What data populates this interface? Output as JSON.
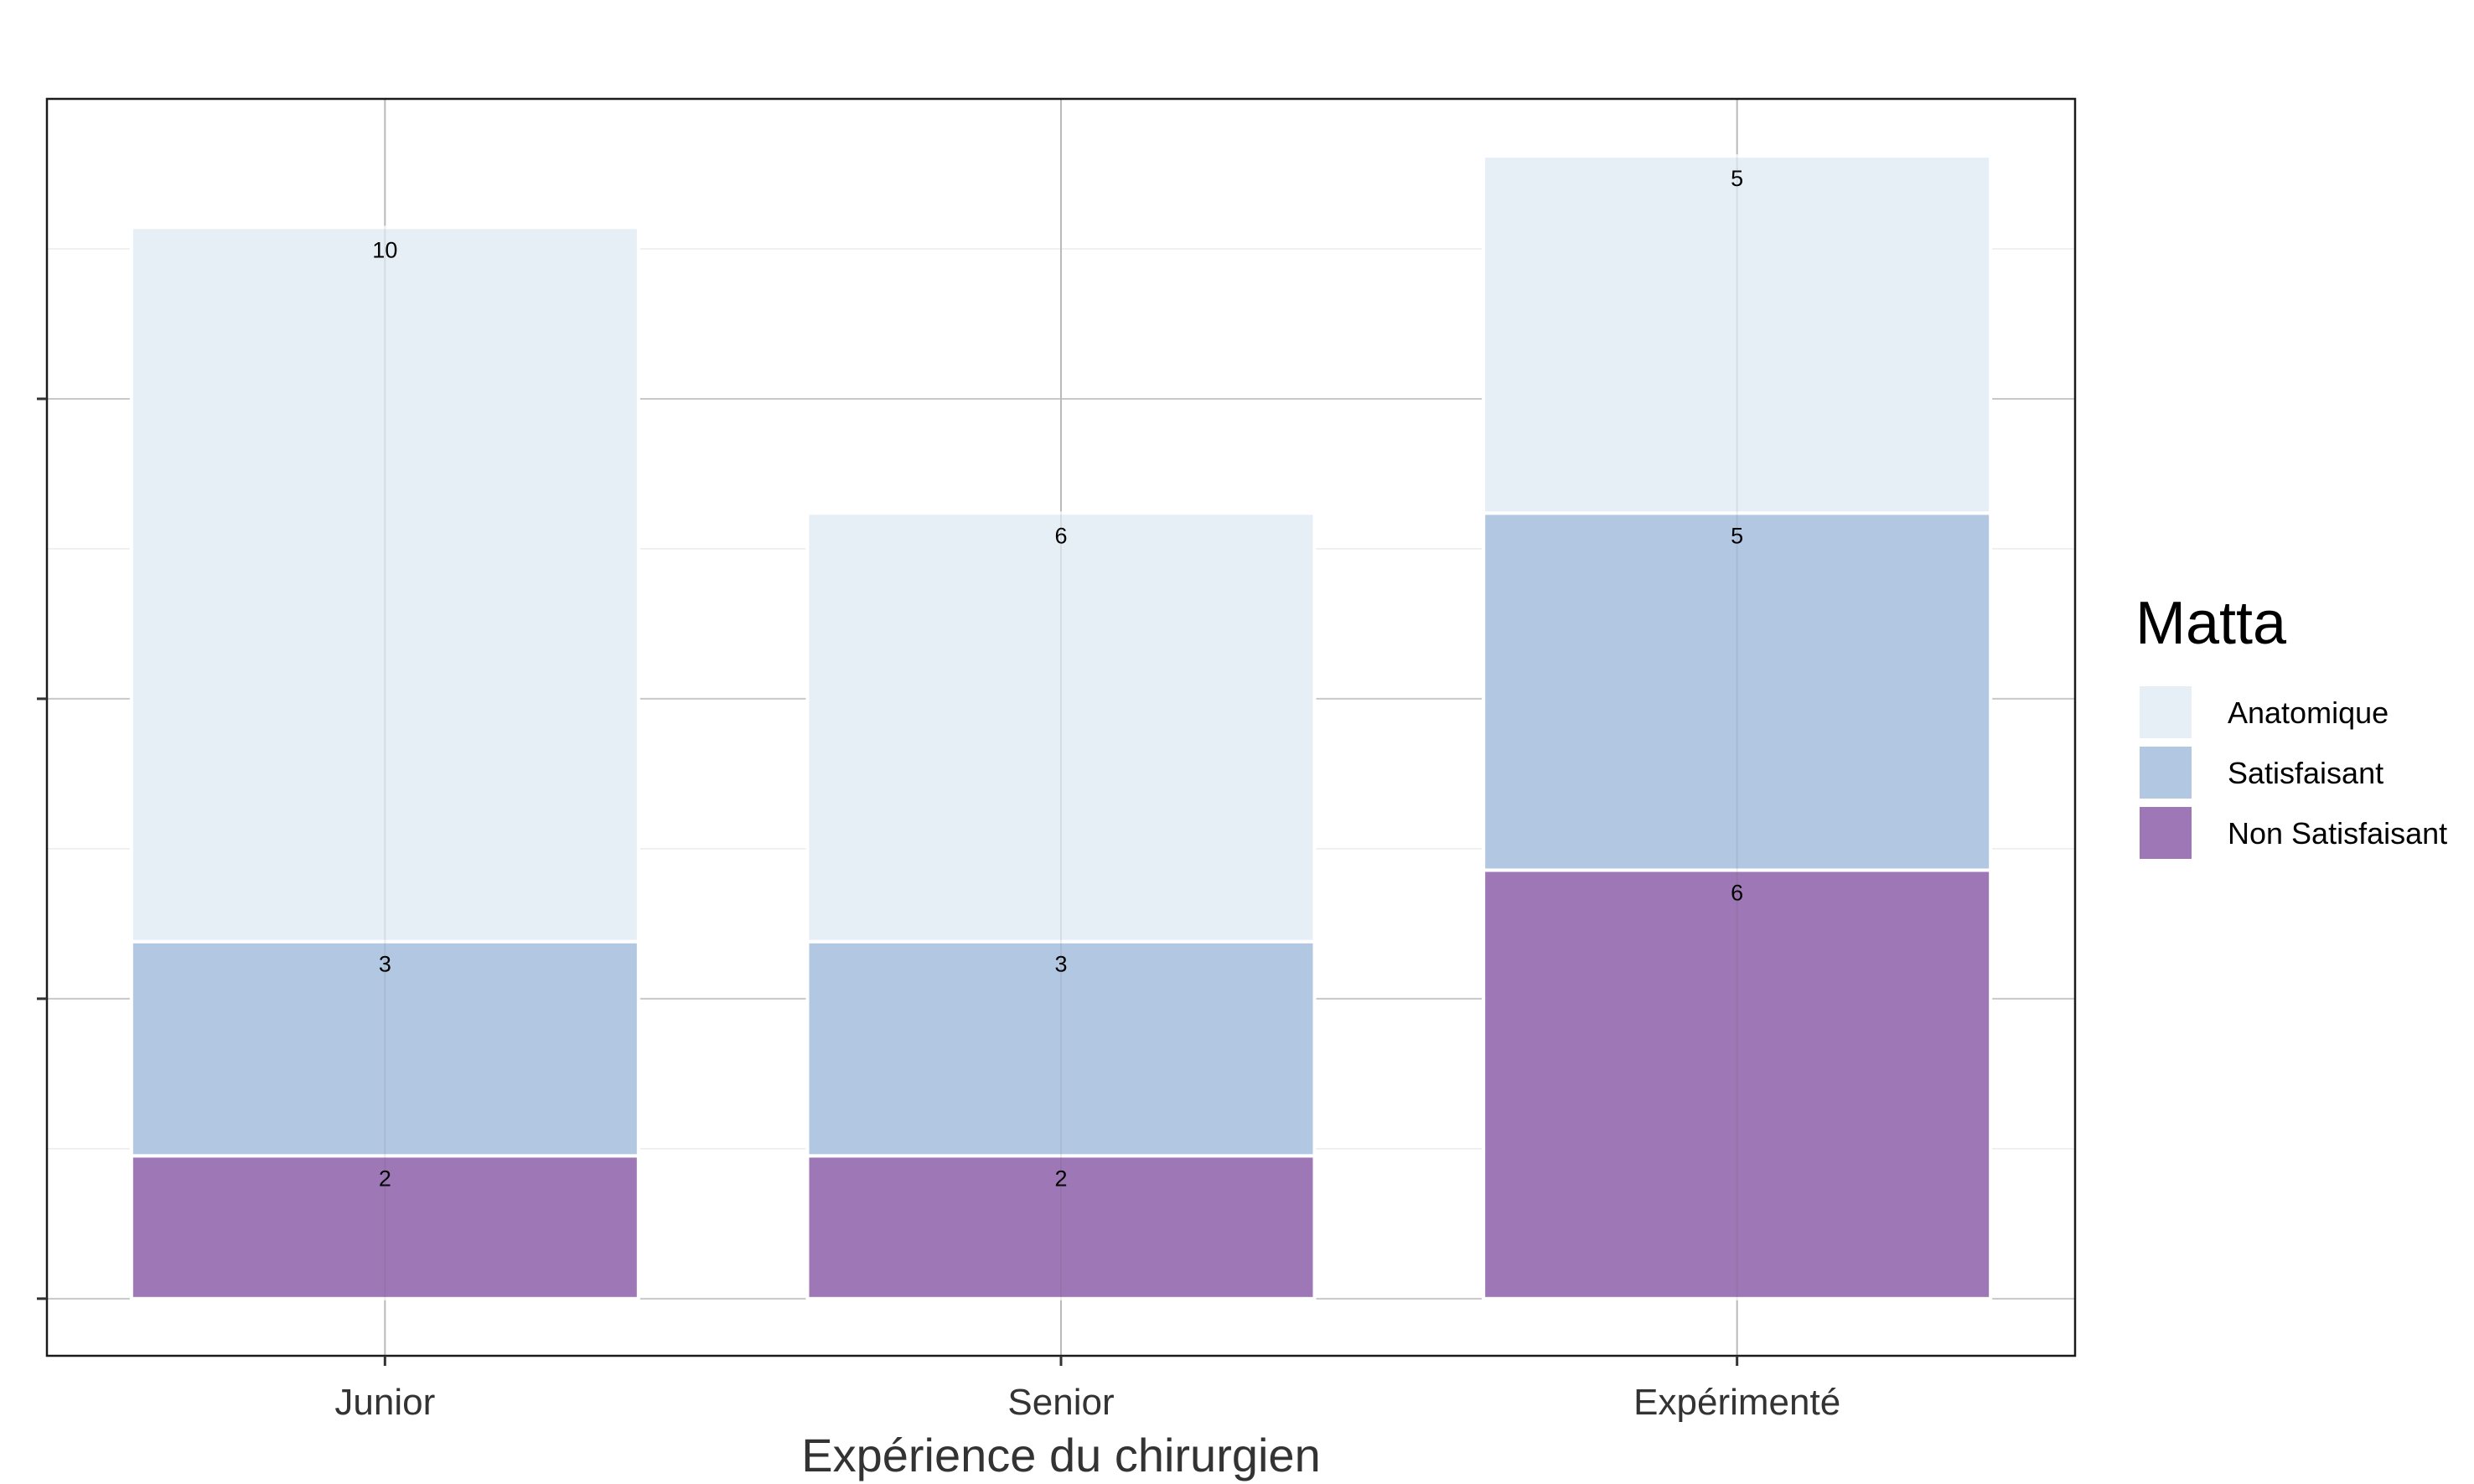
{
  "chart_data": {
    "type": "bar",
    "stacked": true,
    "xlabel": "Expérience du chirurgien",
    "ylabel": "",
    "categories": [
      "Junior",
      "Senior",
      "Expérimenté"
    ],
    "series": [
      {
        "name": "Non Satisfaisant",
        "values": [
          2,
          2,
          6
        ],
        "color": "#9e77b6"
      },
      {
        "name": "Satisfaisant",
        "values": [
          3,
          3,
          5
        ],
        "color": "#b2c8e2"
      },
      {
        "name": "Anatomique",
        "values": [
          10,
          6,
          5
        ],
        "color": "#e6eef6"
      }
    ],
    "ylim": [
      -0.8,
      16.8
    ],
    "y_tick_values": [
      0,
      4.2,
      8.4,
      12.6
    ],
    "y_tick_labels_shown": false,
    "data_labels": true,
    "grid": true,
    "legend": {
      "title": "Matta",
      "position": "right",
      "order": [
        "Anatomique",
        "Satisfaisant",
        "Non Satisfaisant"
      ]
    }
  }
}
